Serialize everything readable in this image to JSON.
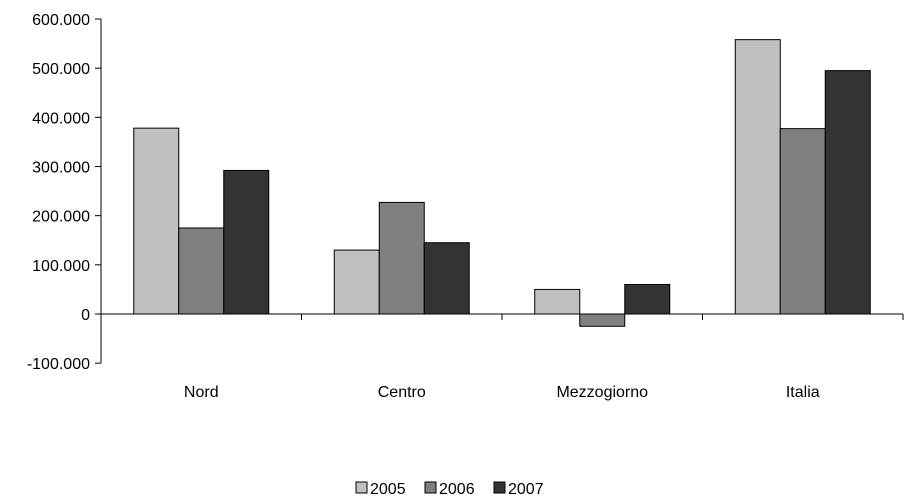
{
  "chart_data": {
    "type": "bar",
    "title": "",
    "xlabel": "",
    "ylabel": "",
    "categories": [
      "Nord",
      "Centro",
      "Mezzogiorno",
      "Italia"
    ],
    "series": [
      {
        "name": "2005",
        "color": "#c0c0c0",
        "values": [
          378000,
          130000,
          50000,
          558000
        ]
      },
      {
        "name": "2006",
        "color": "#808080",
        "values": [
          175000,
          227000,
          -25000,
          377000
        ]
      },
      {
        "name": "2007",
        "color": "#333333",
        "values": [
          292000,
          145000,
          60000,
          495000
        ]
      }
    ],
    "ylim": [
      -100000,
      600000
    ],
    "yticks": [
      -100000,
      0,
      100000,
      200000,
      300000,
      400000,
      500000,
      600000
    ],
    "ytick_labels": [
      "-100.000",
      "0",
      "100.000",
      "200.000",
      "300.000",
      "400.000",
      "500.000",
      "600.000"
    ],
    "grid": false,
    "legend_position": "bottom"
  }
}
